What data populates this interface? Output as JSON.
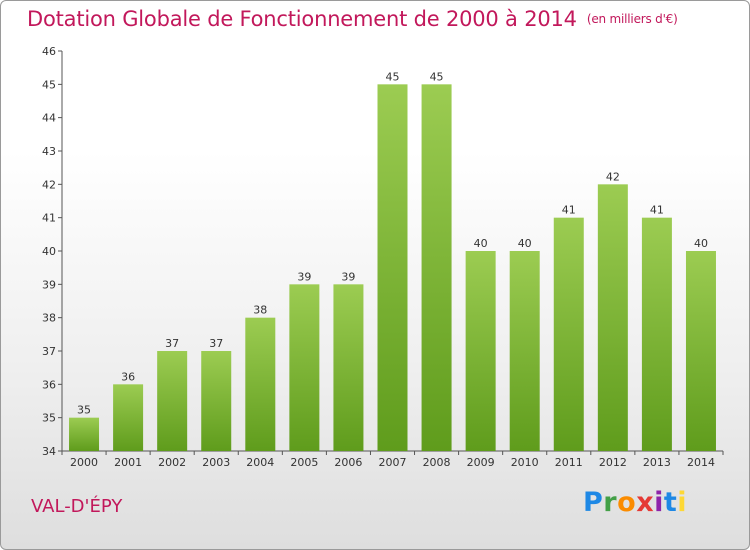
{
  "chart_data": {
    "type": "bar",
    "title": "Dotation Globale de Fonctionnement de 2000 à 2014",
    "subtitle": "(en milliers d'€)",
    "categories": [
      "2000",
      "2001",
      "2002",
      "2003",
      "2004",
      "2005",
      "2006",
      "2007",
      "2008",
      "2009",
      "2010",
      "2011",
      "2012",
      "2013",
      "2014"
    ],
    "values": [
      35,
      36,
      37,
      37,
      38,
      39,
      39,
      45,
      45,
      40,
      40,
      41,
      42,
      41,
      40
    ],
    "ylim": [
      34,
      46
    ],
    "yticks": [
      34,
      35,
      36,
      37,
      38,
      39,
      40,
      41,
      42,
      43,
      44,
      45,
      46
    ],
    "grid": false,
    "bar_color_top": "#9ccc52",
    "bar_color_bottom": "#5f9c1c"
  },
  "footer": {
    "commune": "VAL-D'ÉPY",
    "logo": "Proxiti"
  }
}
